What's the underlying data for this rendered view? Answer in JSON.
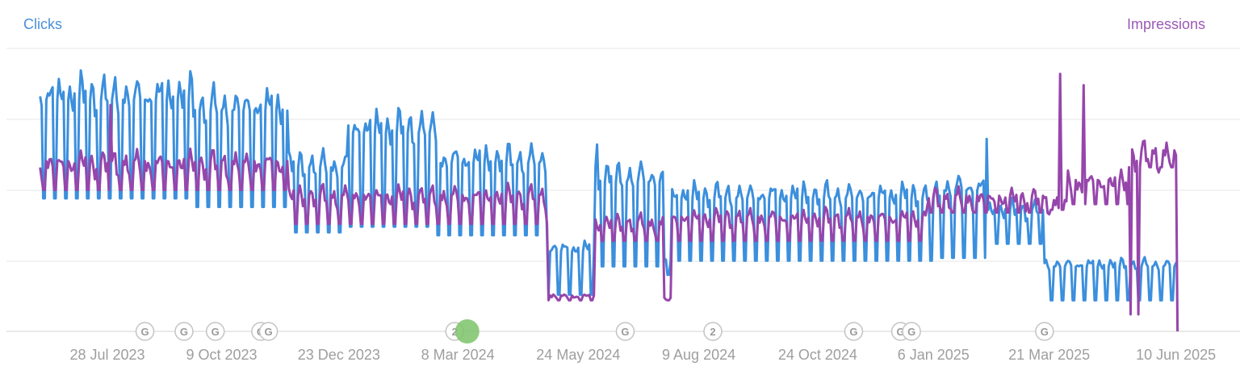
{
  "legend": {
    "clicks": "Clicks",
    "impressions": "Impressions"
  },
  "chart_data": {
    "type": "line",
    "title": "",
    "xlabel": "",
    "ylabel": "",
    "x_range": [
      "2023-06-15",
      "2025-06-11"
    ],
    "y_axis_labels_shown": false,
    "grid": true,
    "legend_placement": "top, left and right",
    "x_ticks": [
      "28 Jul 2023",
      "9 Oct 2023",
      "23 Dec 2023",
      "8 Mar 2024",
      "24 May 2024",
      "9 Aug 2024",
      "24 Oct 2024",
      "6 Jan 2025",
      "21 Mar 2025",
      "10 Jun 2025"
    ],
    "x_tick_dates": [
      "2023-07-28",
      "2023-10-09",
      "2023-12-23",
      "2024-03-08",
      "2024-05-24",
      "2024-08-09",
      "2024-10-24",
      "2025-01-06",
      "2025-03-21",
      "2025-06-10"
    ],
    "series": [
      {
        "name": "Clicks",
        "color": "#3b8fdd",
        "pattern": "weekday high, weekend low",
        "ranges": [
          {
            "from": "2023-06-15",
            "to": "2023-09-20",
            "high": 88,
            "low": 47
          },
          {
            "from": "2023-09-20",
            "to": "2023-11-20",
            "high": 84,
            "low": 44
          },
          {
            "from": "2023-11-20",
            "to": "2023-12-28",
            "high": 62,
            "low": 35
          },
          {
            "from": "2023-12-28",
            "to": "2024-02-23",
            "high": 76,
            "low": 37
          },
          {
            "from": "2024-02-23",
            "to": "2024-05-04",
            "high": 64,
            "low": 34
          },
          {
            "from": "2024-05-05",
            "to": "2024-06-03",
            "high": 31,
            "low": 13
          },
          {
            "from": "2024-06-04",
            "to": "2024-07-17",
            "high": 58,
            "low": 23
          },
          {
            "from": "2024-07-18",
            "to": "2024-07-22",
            "high": 26,
            "low": 20
          },
          {
            "from": "2024-07-22",
            "to": "2025-01-09",
            "high": 51,
            "low": 25
          },
          {
            "from": "2025-01-09",
            "to": "2025-02-09",
            "high": 54,
            "low": 26
          },
          {
            "from": "2025-02-09",
            "to": "2025-03-17",
            "high": 45,
            "low": 31
          },
          {
            "from": "2025-03-17",
            "to": "2025-06-11",
            "high": 25,
            "low": 11
          }
        ],
        "spikes": [
          {
            "date": "2024-06-05",
            "value": 66
          },
          {
            "date": "2025-02-09",
            "value": 68
          }
        ]
      },
      {
        "name": "Impressions",
        "color": "#9646ab",
        "pattern": "weekday high, weekend low",
        "ranges": [
          {
            "from": "2023-06-15",
            "to": "2023-11-20",
            "high": 62,
            "low": 50
          },
          {
            "from": "2023-11-20",
            "to": "2024-05-04",
            "high": 50,
            "low": 38
          },
          {
            "from": "2024-05-05",
            "to": "2024-06-03",
            "high": 13,
            "low": 11
          },
          {
            "from": "2024-06-04",
            "to": "2024-07-17",
            "high": 40,
            "low": 32
          },
          {
            "from": "2024-07-18",
            "to": "2024-07-22",
            "high": 12,
            "low": 11
          },
          {
            "from": "2024-07-22",
            "to": "2025-01-01",
            "high": 42,
            "low": 32
          },
          {
            "from": "2025-01-01",
            "to": "2025-03-17",
            "high": 49,
            "low": 42
          },
          {
            "from": "2025-03-17",
            "to": "2025-04-01",
            "high": 47,
            "low": 43
          },
          {
            "from": "2025-04-01",
            "to": "2025-05-10",
            "high": 55,
            "low": 45
          },
          {
            "from": "2025-05-10",
            "to": "2025-06-11",
            "high": 65,
            "low": 58
          }
        ],
        "spikes": [
          {
            "date": "2023-07-30",
            "value": 80
          },
          {
            "date": "2025-03-28",
            "value": 91
          },
          {
            "date": "2025-04-12",
            "value": 87
          },
          {
            "date": "2025-05-12",
            "value": 6
          },
          {
            "date": "2025-05-17",
            "value": 6
          },
          {
            "date": "2025-06-11",
            "value": 0
          }
        ]
      }
    ],
    "annotations": [
      {
        "date": "2023-08-21",
        "label": "G",
        "type": "google-update"
      },
      {
        "date": "2023-09-15",
        "label": "G",
        "type": "google-update"
      },
      {
        "date": "2023-10-05",
        "label": "G",
        "type": "google-update"
      },
      {
        "date": "2023-11-03",
        "label": "G",
        "type": "google-update"
      },
      {
        "date": "2023-11-08",
        "label": "G",
        "type": "google-update"
      },
      {
        "date": "2024-03-06",
        "label": "2",
        "type": "note-count"
      },
      {
        "date": "2024-03-14",
        "label": "",
        "type": "highlight",
        "color": "#7cc36a"
      },
      {
        "date": "2024-06-23",
        "label": "G",
        "type": "google-update"
      },
      {
        "date": "2024-08-18",
        "label": "2",
        "type": "note-count"
      },
      {
        "date": "2024-11-16",
        "label": "G",
        "type": "google-update"
      },
      {
        "date": "2024-12-16",
        "label": "G",
        "type": "google-update"
      },
      {
        "date": "2024-12-23",
        "label": "G",
        "type": "google-update"
      },
      {
        "date": "2025-03-18",
        "label": "G",
        "type": "google-update"
      }
    ]
  }
}
